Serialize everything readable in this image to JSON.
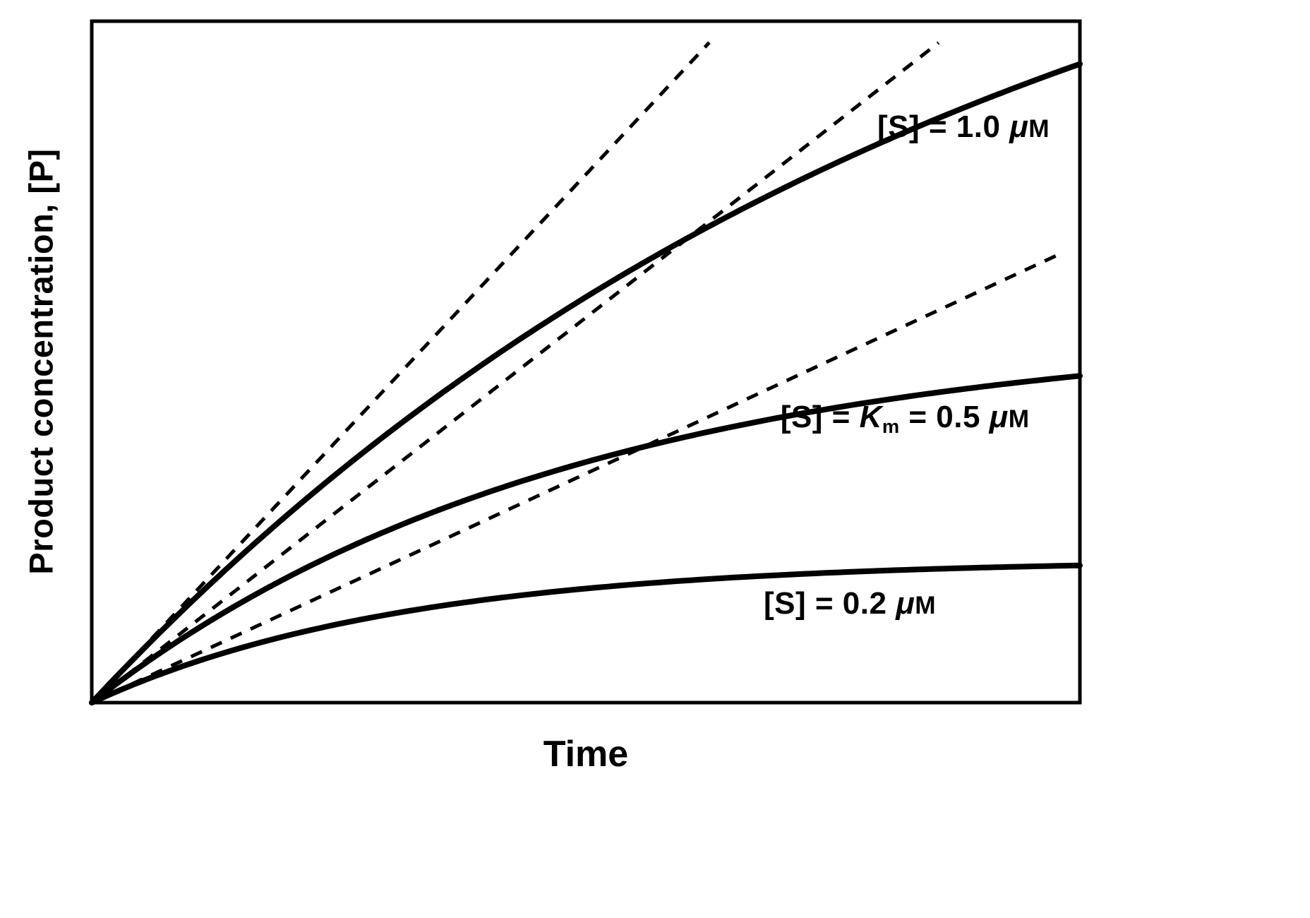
{
  "figure": {
    "background": "#ffffff",
    "line_color": "#000000"
  },
  "chart_data": {
    "type": "line",
    "title": "",
    "xlabel": "Time",
    "ylabel": "Product concentration, [P]",
    "x_range": [
      0,
      1
    ],
    "y_range": [
      0,
      1
    ],
    "axis_ticks": "none",
    "grid": false,
    "frame": true,
    "legend": "inline-labels",
    "description": "Enzyme kinetics progress curves: product concentration versus time at three substrate concentrations. Dashed straight lines through the origin show the initial velocity (tangent at t = 0) for each curve.",
    "series": [
      {
        "name": "[S] = 1.0 μM",
        "model": "P = A*(1 - exp(-k*t))",
        "A": 1.4,
        "k": 1.107,
        "initial_slope": 1.55,
        "x": [
          0,
          0.1,
          0.2,
          0.3,
          0.4,
          0.5,
          0.6,
          0.7,
          0.8,
          0.9,
          1.0
        ],
        "y": [
          0,
          0.147,
          0.278,
          0.396,
          0.501,
          0.595,
          0.679,
          0.755,
          0.823,
          0.883,
          0.937
        ],
        "label_anchor": {
          "x": 0.795,
          "y": 0.845
        },
        "label_segments": [
          {
            "text": "[S] = 1.0 "
          },
          {
            "text": "μ",
            "style": "italic"
          },
          {
            "text": "M",
            "style": "smallcap"
          }
        ]
      },
      {
        "name": "[S] = Km = 0.5 μM",
        "model": "P = A*(1 - exp(-k*t))",
        "A": 0.55,
        "k": 2.054,
        "initial_slope": 1.13,
        "x": [
          0,
          0.1,
          0.2,
          0.3,
          0.4,
          0.5,
          0.6,
          0.7,
          0.8,
          0.9,
          1.0
        ],
        "y": [
          0,
          0.102,
          0.185,
          0.253,
          0.308,
          0.353,
          0.39,
          0.419,
          0.444,
          0.463,
          0.479
        ],
        "label_anchor": {
          "x": 0.697,
          "y": 0.417
        },
        "label_segments": [
          {
            "text": "[S] = "
          },
          {
            "text": "K",
            "style": "italic"
          },
          {
            "text": "m",
            "style": "sub"
          },
          {
            "text": " = 0.5 "
          },
          {
            "text": "μ",
            "style": "italic"
          },
          {
            "text": "M",
            "style": "smallcap"
          }
        ]
      },
      {
        "name": "[S] = 0.2 μM",
        "model": "P = A*(1 - exp(-k*t))",
        "A": 0.21,
        "k": 3.19,
        "initial_slope": 0.67,
        "x": [
          0,
          0.1,
          0.2,
          0.3,
          0.4,
          0.5,
          0.6,
          0.7,
          0.8,
          0.9,
          1.0
        ],
        "y": [
          0,
          0.057,
          0.099,
          0.129,
          0.151,
          0.167,
          0.179,
          0.188,
          0.194,
          0.198,
          0.201
        ],
        "label_anchor": {
          "x": 0.68,
          "y": 0.145
        },
        "label_segments": [
          {
            "text": "[S] = 0.2 "
          },
          {
            "text": "μ",
            "style": "italic"
          },
          {
            "text": "M",
            "style": "smallcap"
          }
        ]
      }
    ],
    "tangents": [
      {
        "name": "initial velocity tangent, [S] = 1.0 μM",
        "slope": 1.55,
        "x_end": 0.625
      },
      {
        "name": "initial velocity tangent, [S] = 0.5 μM",
        "slope": 1.13,
        "x_end": 0.857
      },
      {
        "name": "initial velocity tangent, [S] = 0.2 μM",
        "slope": 0.672,
        "x_end": 0.979
      }
    ]
  }
}
